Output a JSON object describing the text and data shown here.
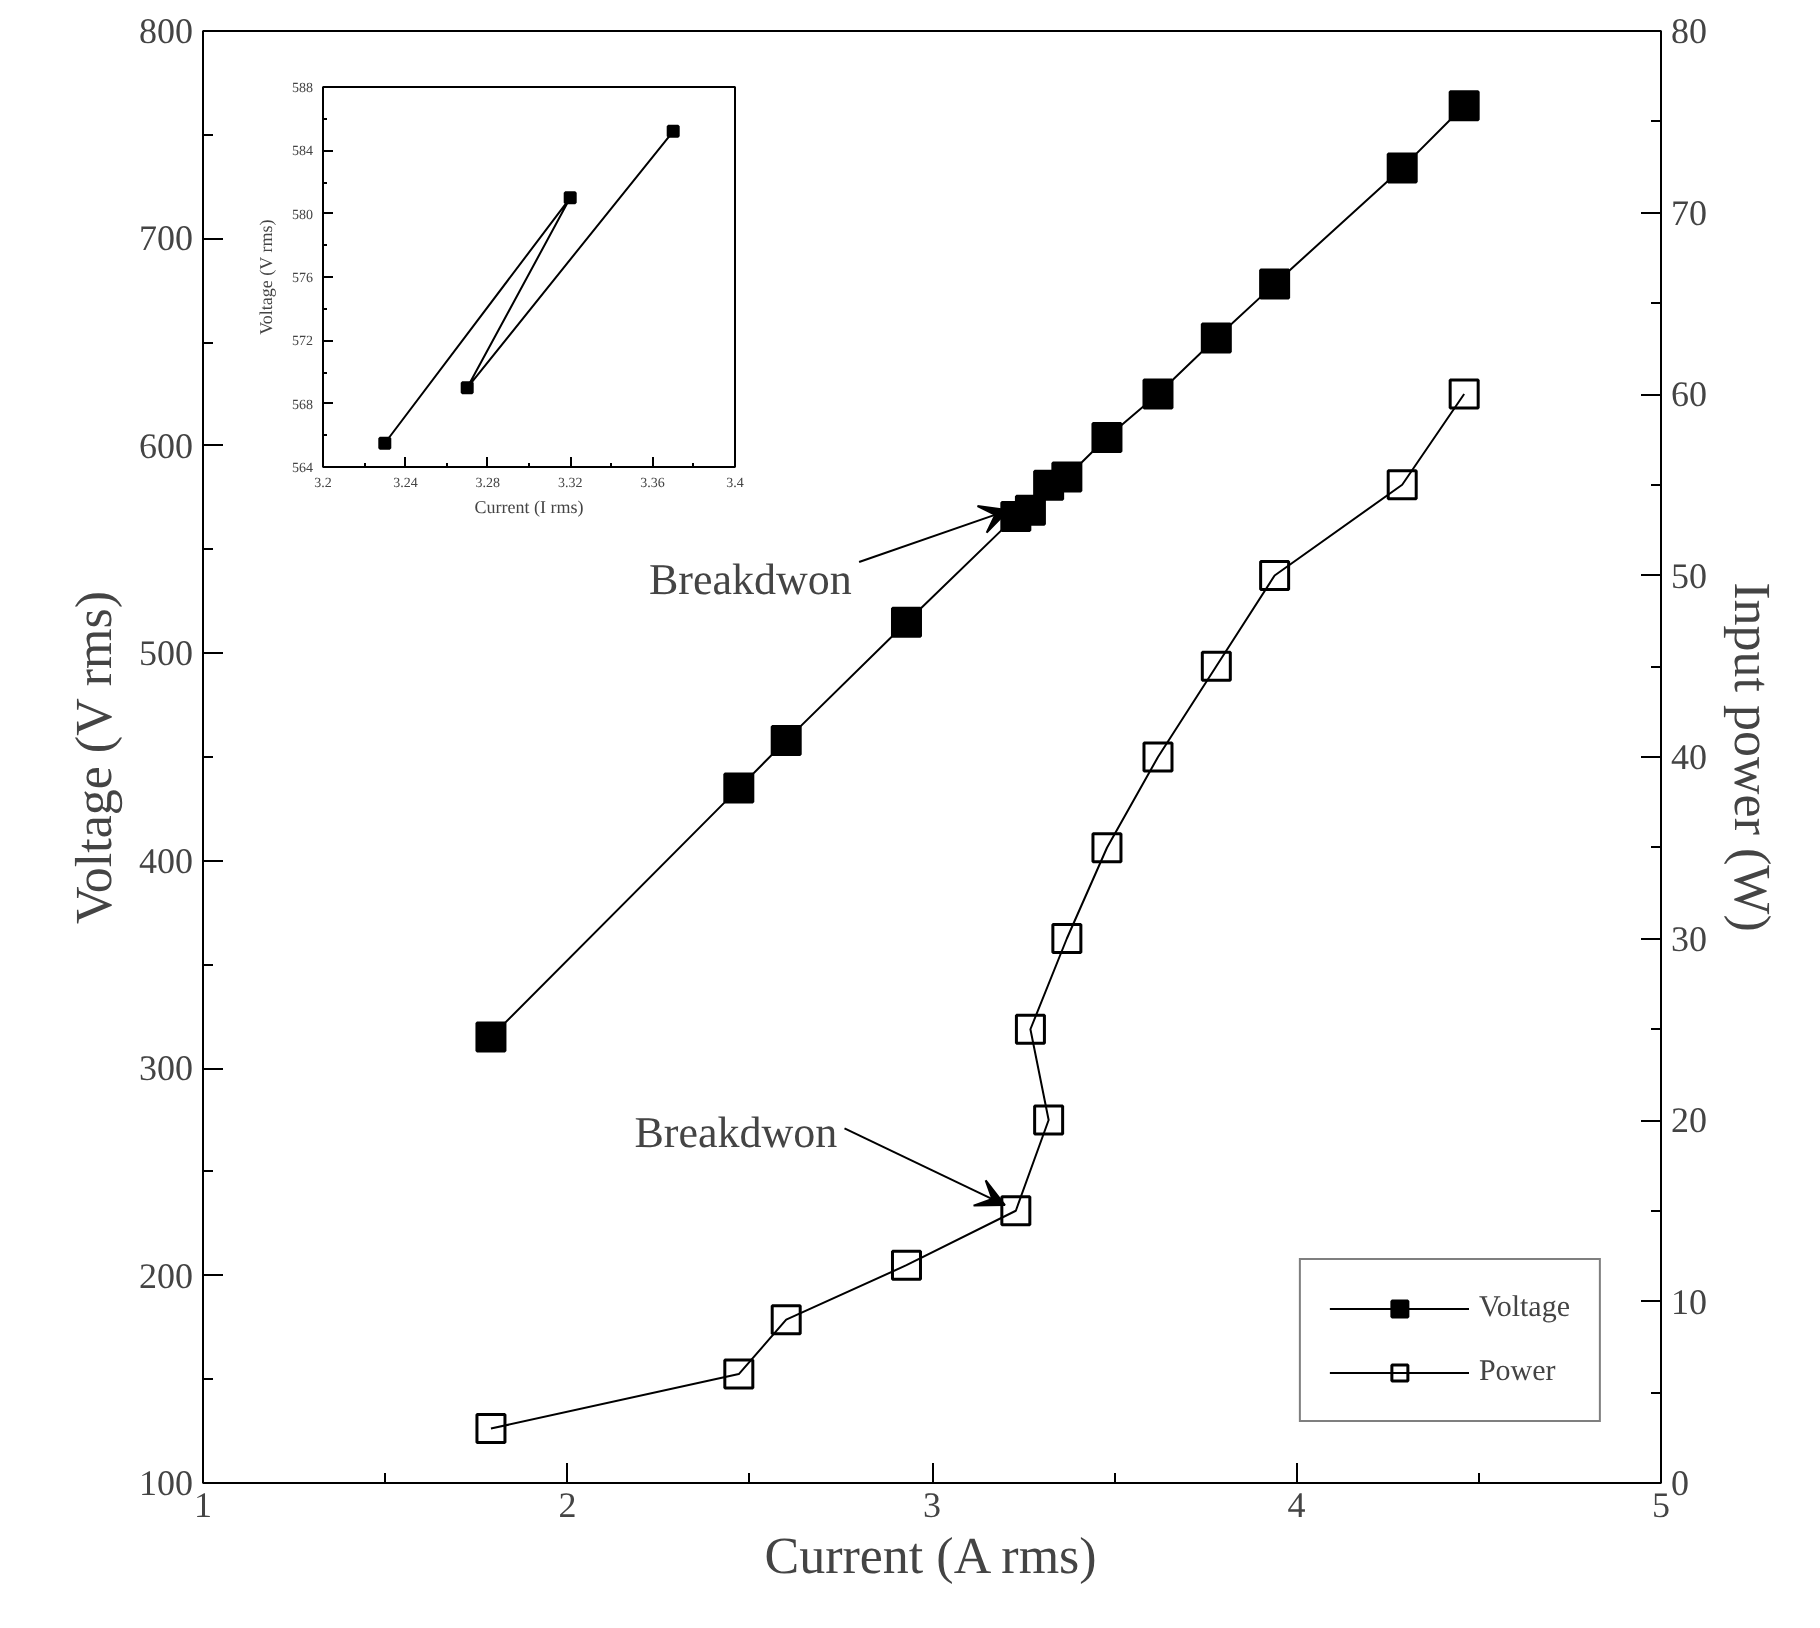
{
  "chart_data": [
    {
      "type": "line",
      "xlabel": "Current (A rms)",
      "ylabel": "Voltage (V rms)",
      "y2label": "Input power (W)",
      "xlim": [
        1,
        5
      ],
      "xticks": [
        1,
        2,
        3,
        4,
        5
      ],
      "ylim": [
        100,
        800
      ],
      "yticks": [
        100,
        200,
        300,
        400,
        500,
        600,
        700,
        800
      ],
      "y2lim": [
        0,
        80
      ],
      "y2ticks": [
        0,
        10,
        20,
        30,
        40,
        50,
        60,
        70,
        80
      ],
      "legend": "bottom right",
      "x": [
        1.79,
        2.47,
        2.6,
        2.93,
        3.23,
        3.32,
        3.27,
        3.37,
        3.48,
        3.62,
        3.78,
        3.94,
        4.29,
        4.46
      ],
      "series": [
        {
          "name": "Voltage",
          "color": "#000000",
          "marker": "square",
          "values": [
            315,
            435,
            458,
            515,
            566,
            581,
            569,
            585,
            604,
            625,
            652,
            678,
            734,
            764
          ]
        },
        {
          "name": "Power",
          "color": "#000000",
          "marker": "square_open",
          "axis": "y2",
          "values": [
            3,
            6,
            9,
            12,
            15,
            20,
            25,
            30,
            35,
            40,
            45,
            50,
            55,
            60
          ]
        }
      ],
      "annotations": [
        {
          "text": "Breakdwon",
          "x": 3.23,
          "y": 566
        },
        {
          "text": "Breakdwon",
          "x": 3.23,
          "y": 231
        }
      ]
    },
    {
      "type": "line",
      "xlabel": "Current (I rms)",
      "ylabel": "Voltage (V rms)",
      "xlim": [
        3.2,
        3.4
      ],
      "xticks": [
        3.2,
        3.24,
        3.28,
        3.32,
        3.36,
        3.4
      ],
      "ylim": [
        564,
        588
      ],
      "yticks": [
        564,
        568,
        572,
        576,
        580,
        584,
        588
      ],
      "x": [
        3.23,
        3.32,
        3.27,
        3.37
      ],
      "series": [
        {
          "color": "#000000",
          "marker": "square",
          "values": [
            565.5,
            581,
            569,
            585.2
          ]
        }
      ]
    }
  ]
}
